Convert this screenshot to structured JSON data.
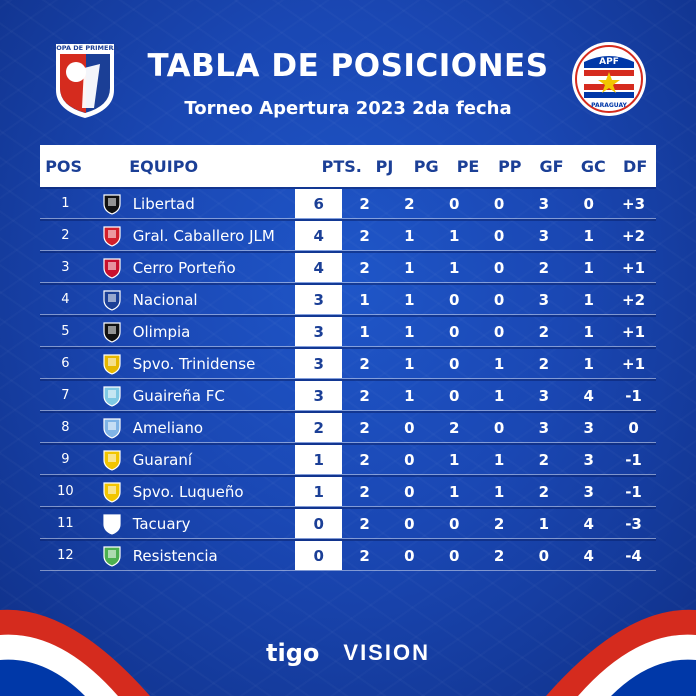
{
  "header": {
    "title": "TABLA DE POSICIONES",
    "subtitle": "Torneo Apertura 2023 2da fecha",
    "left_logo_text": "COPA DE PRIMERA",
    "right_logo_top": "APF",
    "right_logo_bottom": "PARAGUAY"
  },
  "columns": {
    "pos": "POS",
    "team": "EQUIPO",
    "pts": "PTS.",
    "pj": "PJ",
    "pg": "PG",
    "pe": "PE",
    "pp": "PP",
    "gf": "GF",
    "gc": "GC",
    "df": "DF"
  },
  "rows": [
    {
      "pos": "1",
      "team": "Libertad",
      "pts": "6",
      "pj": "2",
      "pg": "2",
      "pe": "0",
      "pp": "0",
      "gf": "3",
      "gc": "0",
      "df": "+3",
      "crest": "libertad-crest-icon",
      "color": "#111111"
    },
    {
      "pos": "2",
      "team": "Gral. Caballero JLM",
      "pts": "4",
      "pj": "2",
      "pg": "1",
      "pe": "1",
      "pp": "0",
      "gf": "3",
      "gc": "1",
      "df": "+2",
      "crest": "caballero-crest-icon",
      "color": "#d21f2b"
    },
    {
      "pos": "3",
      "team": "Cerro Porteño",
      "pts": "4",
      "pj": "2",
      "pg": "1",
      "pe": "1",
      "pp": "0",
      "gf": "2",
      "gc": "1",
      "df": "+1",
      "crest": "cerro-crest-icon",
      "color": "#c8102e"
    },
    {
      "pos": "4",
      "team": "Nacional",
      "pts": "3",
      "pj": "1",
      "pg": "1",
      "pe": "0",
      "pp": "0",
      "gf": "3",
      "gc": "1",
      "df": "+2",
      "crest": "nacional-crest-icon",
      "color": "#1b3f96"
    },
    {
      "pos": "5",
      "team": "Olimpia",
      "pts": "3",
      "pj": "1",
      "pg": "1",
      "pe": "0",
      "pp": "0",
      "gf": "2",
      "gc": "1",
      "df": "+1",
      "crest": "olimpia-crest-icon",
      "color": "#111111"
    },
    {
      "pos": "6",
      "team": "Spvo. Trinidense",
      "pts": "3",
      "pj": "2",
      "pg": "1",
      "pe": "0",
      "pp": "1",
      "gf": "2",
      "gc": "1",
      "df": "+1",
      "crest": "trinidense-crest-icon",
      "color": "#e6b800"
    },
    {
      "pos": "7",
      "team": "Guaireña FC",
      "pts": "3",
      "pj": "2",
      "pg": "1",
      "pe": "0",
      "pp": "1",
      "gf": "3",
      "gc": "4",
      "df": "-1",
      "crest": "guairena-crest-icon",
      "color": "#7ec8e3"
    },
    {
      "pos": "8",
      "team": "Ameliano",
      "pts": "2",
      "pj": "2",
      "pg": "0",
      "pe": "2",
      "pp": "0",
      "gf": "3",
      "gc": "3",
      "df": "0",
      "crest": "ameliano-crest-icon",
      "color": "#7fb3e6"
    },
    {
      "pos": "9",
      "team": "Guaraní",
      "pts": "1",
      "pj": "2",
      "pg": "0",
      "pe": "1",
      "pp": "1",
      "gf": "2",
      "gc": "3",
      "df": "-1",
      "crest": "guarani-crest-icon",
      "color": "#f2c500"
    },
    {
      "pos": "10",
      "team": "Spvo. Luqueño",
      "pts": "1",
      "pj": "2",
      "pg": "0",
      "pe": "1",
      "pp": "1",
      "gf": "2",
      "gc": "3",
      "df": "-1",
      "crest": "luqueno-crest-icon",
      "color": "#f2c500"
    },
    {
      "pos": "11",
      "team": "Tacuary",
      "pts": "0",
      "pj": "2",
      "pg": "0",
      "pe": "0",
      "pp": "2",
      "gf": "1",
      "gc": "4",
      "df": "-3",
      "crest": "tacuary-crest-icon",
      "color": "#ffffff"
    },
    {
      "pos": "12",
      "team": "Resistencia",
      "pts": "0",
      "pj": "2",
      "pg": "0",
      "pe": "0",
      "pp": "2",
      "gf": "0",
      "gc": "4",
      "df": "-4",
      "crest": "resistencia-crest-icon",
      "color": "#4caf50"
    }
  ],
  "sponsors": {
    "tigo": "tigo",
    "vision": "VISION"
  },
  "colors": {
    "background": "#1a47b3",
    "header_text": "#1b3f96",
    "flag_red": "#d52b1e",
    "flag_white": "#ffffff",
    "flag_blue": "#0038a8"
  }
}
